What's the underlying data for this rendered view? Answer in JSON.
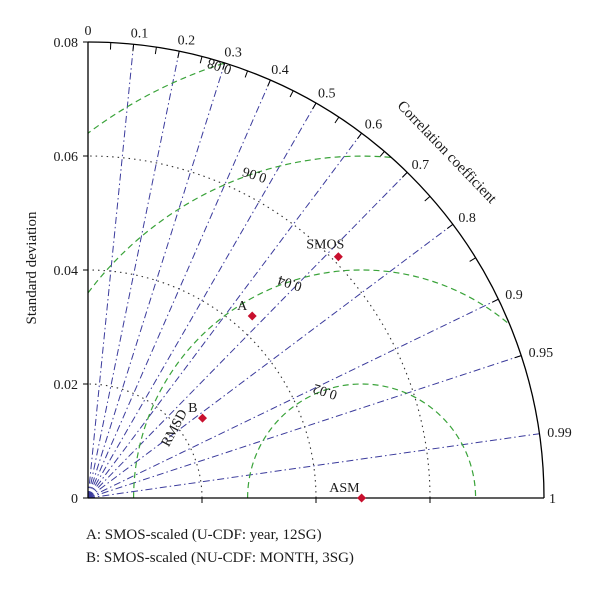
{
  "chart_data": {
    "type": "scatter",
    "subtype": "taylor-diagram",
    "title": "",
    "xlabel": "",
    "ylabel": "Standard deviation",
    "arc_label": "Correlation coefficient",
    "rmsd_label": "RMSD",
    "std_max": 0.08,
    "std_ticks": [
      {
        "value": 0,
        "label": "0"
      },
      {
        "value": 0.02,
        "label": "0.02"
      },
      {
        "value": 0.04,
        "label": "0.04"
      },
      {
        "value": 0.06,
        "label": "0.06"
      },
      {
        "value": 0.08,
        "label": "0.08"
      }
    ],
    "std_arcs": [
      0.02,
      0.04,
      0.06
    ],
    "correlation_ticks": [
      {
        "value": 0,
        "label": "0"
      },
      {
        "value": 0.1,
        "label": "0.1"
      },
      {
        "value": 0.2,
        "label": "0.2"
      },
      {
        "value": 0.3,
        "label": "0.3"
      },
      {
        "value": 0.4,
        "label": "0.4"
      },
      {
        "value": 0.5,
        "label": "0.5"
      },
      {
        "value": 0.6,
        "label": "0.6"
      },
      {
        "value": 0.7,
        "label": "0.7"
      },
      {
        "value": 0.8,
        "label": "0.8"
      },
      {
        "value": 0.9,
        "label": "0.9"
      },
      {
        "value": 0.95,
        "label": "0.95"
      },
      {
        "value": 0.99,
        "label": "0.99"
      },
      {
        "value": 1,
        "label": "1"
      }
    ],
    "reference_std": 0.048,
    "rmsd_contours": [
      {
        "value": 0.02,
        "label": "0.02"
      },
      {
        "value": 0.04,
        "label": "0.04"
      },
      {
        "value": 0.06,
        "label": "0.06"
      },
      {
        "value": 0.08,
        "label": "0.08"
      }
    ],
    "points": [
      {
        "label": "SMOS",
        "correlation": 0.72,
        "std": 0.061
      },
      {
        "label": "A",
        "correlation": 0.67,
        "std": 0.043
      },
      {
        "label": "B",
        "correlation": 0.82,
        "std": 0.0245
      },
      {
        "label": "ASM",
        "correlation": 1.0,
        "std": 0.048
      }
    ],
    "colors": {
      "axis": "#000000",
      "correlation_rays": "#3b3b9c",
      "rmsd_contours": "#3aa33a",
      "std_arcs": "#333333",
      "points": "#c8102e"
    }
  },
  "notes": {
    "a": "A: SMOS-scaled (U-CDF: year, 12SG)",
    "b": "B: SMOS-scaled (NU-CDF: MONTH, 3SG)"
  }
}
